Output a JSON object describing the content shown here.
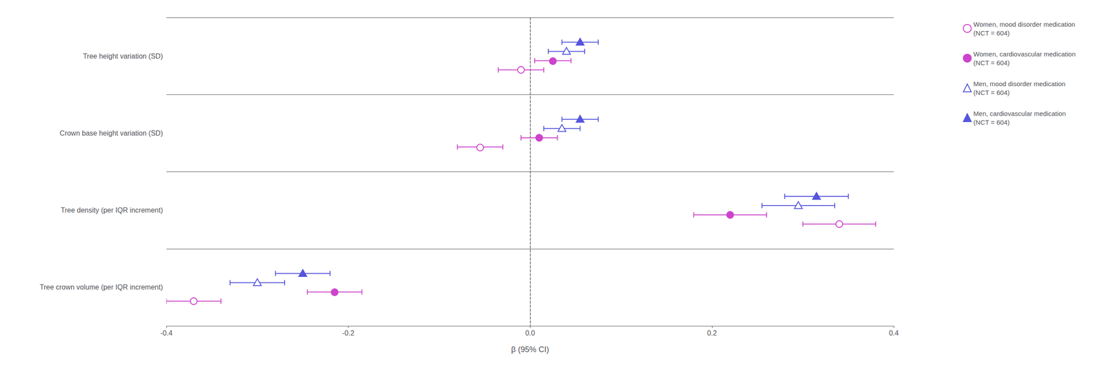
{
  "chart_data": {
    "type": "scatter",
    "orientation": "horizontal",
    "categories": [
      "Tree height variation (SD)",
      "Crown base height variation (SD)",
      "Tree density (per IQR increment)",
      "Tree crown volume (per IQR increment)"
    ],
    "series": [
      {
        "name": "Women, mood disorder medication\n(NCT = 604)",
        "color": "#CC44CC",
        "marker": "circle_open",
        "values": [
          -0.01,
          -0.055,
          0.34,
          -0.37
        ],
        "xerr": [
          0.025,
          0.025,
          0.04,
          0.03
        ]
      },
      {
        "name": "Women, cardiovascular medication\n(NCT = 604)",
        "color": "#CC44CC",
        "marker": "circle",
        "values": [
          0.025,
          0.01,
          0.22,
          -0.215
        ],
        "xerr": [
          0.02,
          0.02,
          0.04,
          0.03
        ]
      },
      {
        "name": "Men, mood disorder medication\n(NCT = 604)",
        "color": "#5555DD",
        "marker": "triangle_open",
        "values": [
          0.04,
          0.035,
          0.295,
          -0.3
        ],
        "xerr": [
          0.02,
          0.02,
          0.04,
          0.03
        ]
      },
      {
        "name": "Men, cardiovascular medication\n(NCT = 604)",
        "color": "#5555DD",
        "marker": "triangle",
        "values": [
          0.055,
          0.055,
          0.315,
          -0.25
        ],
        "xerr": [
          0.02,
          0.02,
          0.035,
          0.03
        ]
      }
    ],
    "xlabel": "β (95% CI)",
    "xlim": [
      -0.4,
      0.4
    ],
    "xticks": [
      -0.4,
      -0.2,
      {
        "value": 0,
        "label": "0.0"
      },
      0.2,
      0.4
    ],
    "grid": true,
    "legend": "right"
  }
}
